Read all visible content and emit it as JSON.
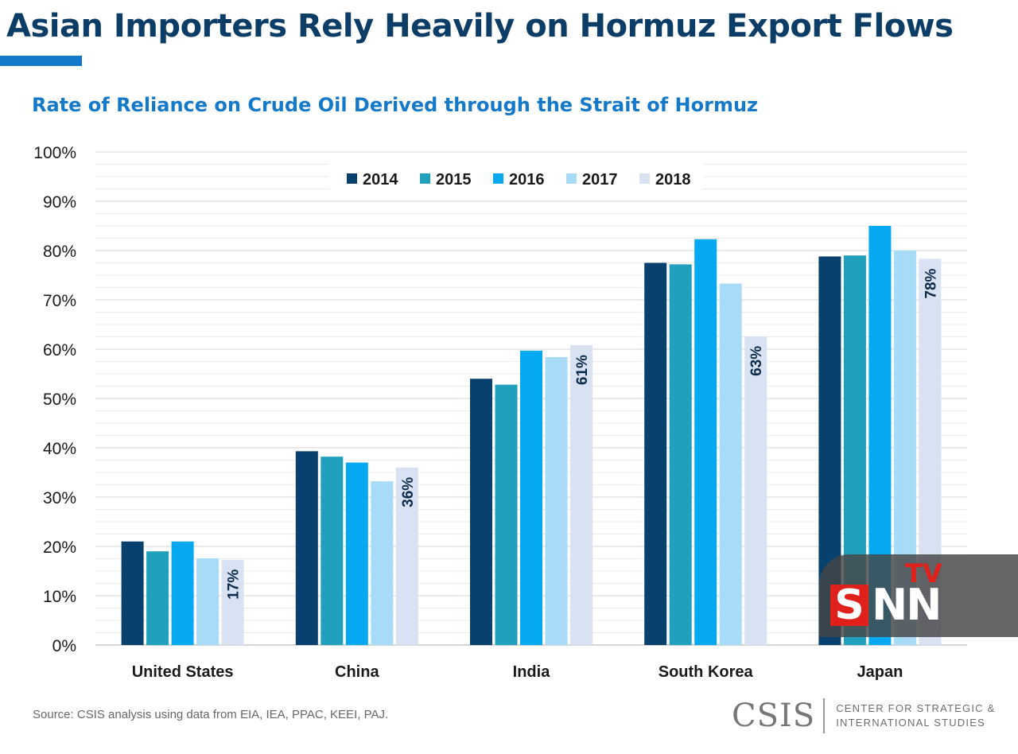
{
  "header": {
    "title": "Asian Importers Rely Heavily on Hormuz Export Flows",
    "subtitle": "Rate of Reliance on Crude Oil Derived through the Strait of Hormuz"
  },
  "chart_data": {
    "type": "bar",
    "title": "Rate of Reliance on Crude Oil Derived through the Strait of Hormuz",
    "xlabel": "",
    "ylabel": "",
    "ylim": [
      0,
      100
    ],
    "yticks": [
      "0%",
      "10%",
      "20%",
      "30%",
      "40%",
      "50%",
      "60%",
      "70%",
      "80%",
      "90%",
      "100%"
    ],
    "grid": true,
    "legend_position": "top-center",
    "categories": [
      "United States",
      "China",
      "India",
      "South Korea",
      "Japan"
    ],
    "series": [
      {
        "name": "2014",
        "color": "#08416e",
        "values": [
          21,
          39.3,
          54,
          77.5,
          78.8
        ]
      },
      {
        "name": "2015",
        "color": "#21a0be",
        "values": [
          19,
          38.2,
          52.8,
          77.2,
          79
        ]
      },
      {
        "name": "2016",
        "color": "#04a9f1",
        "values": [
          21,
          37,
          59.7,
          82.3,
          85
        ]
      },
      {
        "name": "2017",
        "color": "#a8dbf8",
        "values": [
          17.6,
          33.2,
          58.4,
          73.3,
          80
        ]
      },
      {
        "name": "2018",
        "color": "#d8e2f2",
        "values": [
          17.3,
          36,
          60.8,
          62.6,
          78.3
        ]
      }
    ],
    "data_labels": [
      {
        "category": "United States",
        "series": "2018",
        "text": "17%"
      },
      {
        "category": "China",
        "series": "2018",
        "text": "36%"
      },
      {
        "category": "India",
        "series": "2018",
        "text": "61%"
      },
      {
        "category": "South Korea",
        "series": "2018",
        "text": "63%"
      },
      {
        "category": "Japan",
        "series": "2018",
        "text": "78%"
      }
    ]
  },
  "footer": {
    "source": "Source: CSIS analysis using data from EIA, IEA, PPAC, KEEI, PAJ.",
    "logo_mark": "CSIS",
    "logo_line1": "CENTER FOR STRATEGIC &",
    "logo_line2": "INTERNATIONAL STUDIES"
  },
  "watermark": {
    "s": "S",
    "nn": "NN",
    "tv": "TV"
  }
}
